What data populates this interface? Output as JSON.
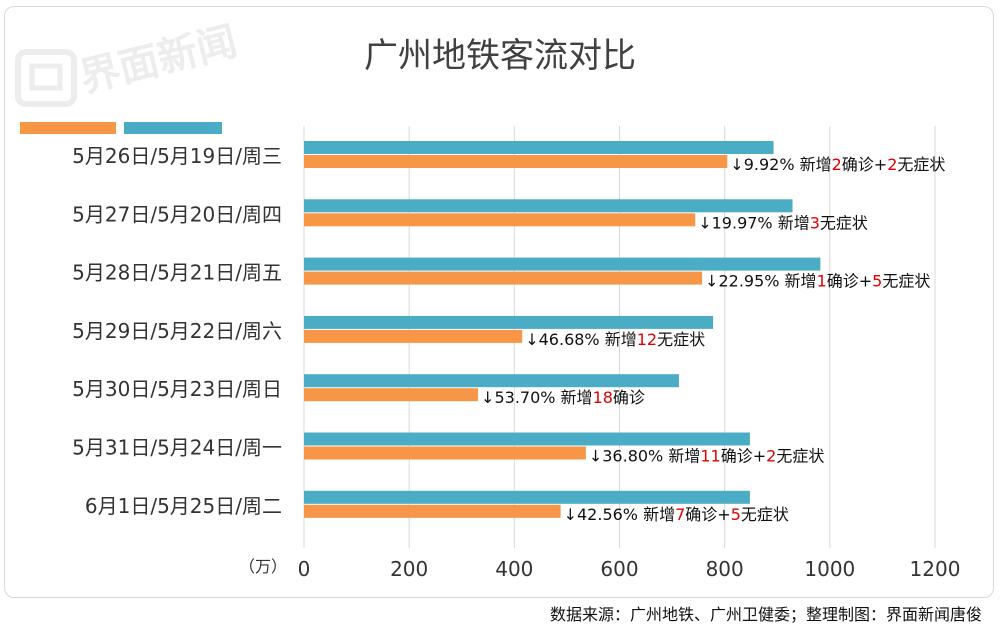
{
  "title": "广州地铁客流对比",
  "source": "数据来源：广州地铁、广州卫健委；整理制图：界面新闻唐俊",
  "watermark": "界面新闻",
  "unit_label": "（万）",
  "colors": {
    "series_prev": "#4bacc6",
    "series_curr": "#f79646",
    "highlight": "#e00000",
    "grid": "#d9d9d9",
    "text": "#333333"
  },
  "chart_data": {
    "type": "bar",
    "orientation": "horizontal",
    "title": "广州地铁客流对比",
    "categories": [
      "5月26日/5月19日/周三",
      "5月27日/5月20日/周四",
      "5月28日/5月21日/周五",
      "5月29日/5月22日/周六",
      "5月30日/5月23日/周日",
      "5月31日/5月24日/周一",
      "6月1日/5月25日/周二"
    ],
    "series": [
      {
        "values": [
          893,
          929,
          982,
          778,
          713,
          848,
          848
        ]
      },
      {
        "values": [
          805,
          744,
          757,
          415,
          331,
          536,
          488
        ]
      }
    ],
    "xlim": [
      0,
      1200
    ],
    "xticks": [
      0,
      200,
      400,
      600,
      800,
      1000,
      1200
    ],
    "grid": true,
    "annotations": [
      {
        "prefix": "↓9.92% 新增",
        "parts": [
          [
            "2",
            true
          ],
          [
            "确诊+",
            false
          ],
          [
            "2",
            true
          ],
          [
            "无症状",
            false
          ]
        ]
      },
      {
        "prefix": "↓19.97% 新增",
        "parts": [
          [
            "3",
            true
          ],
          [
            "无症状",
            false
          ]
        ]
      },
      {
        "prefix": "↓22.95% 新增",
        "parts": [
          [
            "1",
            true
          ],
          [
            "确诊+",
            false
          ],
          [
            "5",
            true
          ],
          [
            "无症状",
            false
          ]
        ]
      },
      {
        "prefix": "↓46.68% 新增",
        "parts": [
          [
            "12",
            true
          ],
          [
            "无症状",
            false
          ]
        ]
      },
      {
        "prefix": "↓53.70% 新增",
        "parts": [
          [
            "18",
            true
          ],
          [
            "确诊",
            false
          ]
        ]
      },
      {
        "prefix": "↓36.80% 新增",
        "parts": [
          [
            "11",
            true
          ],
          [
            "确诊+",
            false
          ],
          [
            "2",
            true
          ],
          [
            "无症状",
            false
          ]
        ]
      },
      {
        "prefix": "↓42.56% 新增",
        "parts": [
          [
            "7",
            true
          ],
          [
            "确诊+",
            false
          ],
          [
            "5",
            true
          ],
          [
            "无症状",
            false
          ]
        ]
      }
    ]
  }
}
